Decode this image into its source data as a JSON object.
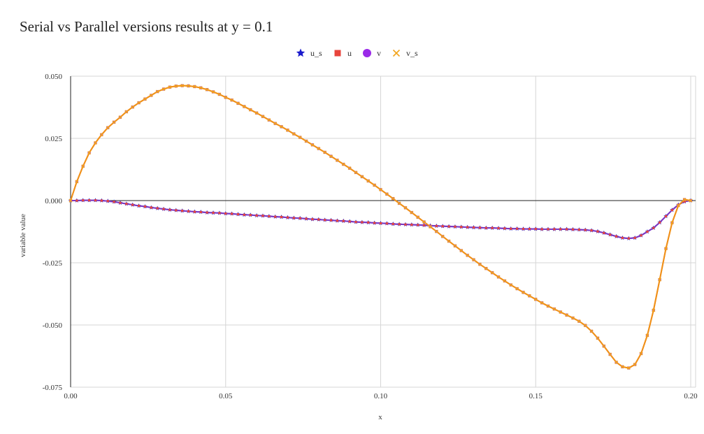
{
  "chart_data": {
    "type": "line",
    "title": "Serial vs Parallel versions results at y = 0.1",
    "xlabel": "x",
    "ylabel": "variable value",
    "xlim": [
      0,
      0.2
    ],
    "ylim": [
      -0.075,
      0.05
    ],
    "xticks": [
      "0.00",
      "0.05",
      "0.10",
      "0.15",
      "0.20"
    ],
    "yticks": [
      "0.050",
      "0.025",
      "0.000",
      "-0.025",
      "-0.050",
      "-0.075"
    ],
    "grid": true,
    "legend_position": "top",
    "x": [
      0,
      0.002,
      0.004,
      0.006,
      0.008,
      0.01,
      0.012,
      0.014,
      0.016,
      0.018,
      0.02,
      0.022,
      0.024,
      0.026,
      0.028,
      0.03,
      0.032,
      0.034,
      0.036,
      0.038,
      0.04,
      0.042,
      0.044,
      0.046,
      0.048,
      0.05,
      0.052,
      0.054,
      0.056,
      0.058,
      0.06,
      0.062,
      0.064,
      0.066,
      0.068,
      0.07,
      0.072,
      0.074,
      0.076,
      0.078,
      0.08,
      0.082,
      0.084,
      0.086,
      0.088,
      0.09,
      0.092,
      0.094,
      0.096,
      0.098,
      0.1,
      0.102,
      0.104,
      0.106,
      0.108,
      0.11,
      0.112,
      0.114,
      0.116,
      0.118,
      0.12,
      0.122,
      0.124,
      0.126,
      0.128,
      0.13,
      0.132,
      0.134,
      0.136,
      0.138,
      0.14,
      0.142,
      0.144,
      0.146,
      0.148,
      0.15,
      0.152,
      0.154,
      0.156,
      0.158,
      0.16,
      0.162,
      0.164,
      0.166,
      0.168,
      0.17,
      0.172,
      0.174,
      0.176,
      0.178,
      0.18,
      0.182,
      0.184,
      0.186,
      0.188,
      0.19,
      0.192,
      0.194,
      0.196,
      0.198,
      0.2
    ],
    "series": [
      {
        "name": "u_s",
        "color": "#1a1acc",
        "marker": "star",
        "values": [
          0,
          0,
          0.0001,
          0.0001,
          0.0001,
          0,
          -0.0002,
          -0.0005,
          -0.0009,
          -0.0013,
          -0.0017,
          -0.0021,
          -0.0024,
          -0.0028,
          -0.0031,
          -0.0034,
          -0.0037,
          -0.0039,
          -0.0041,
          -0.0043,
          -0.0045,
          -0.0046,
          -0.0048,
          -0.0049,
          -0.005,
          -0.0052,
          -0.0053,
          -0.0055,
          -0.0057,
          -0.0058,
          -0.006,
          -0.0061,
          -0.0063,
          -0.0065,
          -0.0066,
          -0.0068,
          -0.007,
          -0.0071,
          -0.0073,
          -0.0075,
          -0.0076,
          -0.0078,
          -0.0079,
          -0.0081,
          -0.0082,
          -0.0084,
          -0.0086,
          -0.0087,
          -0.0088,
          -0.009,
          -0.0091,
          -0.0092,
          -0.0094,
          -0.0095,
          -0.0096,
          -0.0097,
          -0.0098,
          -0.0099,
          -0.0101,
          -0.0102,
          -0.0103,
          -0.0104,
          -0.0105,
          -0.0106,
          -0.0107,
          -0.0108,
          -0.0109,
          -0.011,
          -0.011,
          -0.0111,
          -0.0112,
          -0.0113,
          -0.0113,
          -0.0114,
          -0.0114,
          -0.0114,
          -0.0115,
          -0.0115,
          -0.0115,
          -0.0115,
          -0.0115,
          -0.0116,
          -0.0117,
          -0.0118,
          -0.012,
          -0.0124,
          -0.013,
          -0.0137,
          -0.0144,
          -0.015,
          -0.0152,
          -0.015,
          -0.014,
          -0.0125,
          -0.011,
          -0.0088,
          -0.0063,
          -0.0038,
          -0.0017,
          -0.0004,
          0
        ]
      },
      {
        "name": "u",
        "color": "#e8453c",
        "marker": "square",
        "values": [
          0,
          0,
          0.0001,
          0.0001,
          0.0001,
          0,
          -0.0002,
          -0.0005,
          -0.0009,
          -0.0013,
          -0.0017,
          -0.0021,
          -0.0024,
          -0.0028,
          -0.0031,
          -0.0034,
          -0.0037,
          -0.0039,
          -0.0041,
          -0.0043,
          -0.0045,
          -0.0046,
          -0.0048,
          -0.0049,
          -0.005,
          -0.0052,
          -0.0053,
          -0.0055,
          -0.0057,
          -0.0058,
          -0.006,
          -0.0061,
          -0.0063,
          -0.0065,
          -0.0066,
          -0.0068,
          -0.007,
          -0.0071,
          -0.0073,
          -0.0075,
          -0.0076,
          -0.0078,
          -0.0079,
          -0.0081,
          -0.0082,
          -0.0084,
          -0.0086,
          -0.0087,
          -0.0088,
          -0.009,
          -0.0091,
          -0.0092,
          -0.0094,
          -0.0095,
          -0.0096,
          -0.0097,
          -0.0098,
          -0.0099,
          -0.0101,
          -0.0102,
          -0.0103,
          -0.0104,
          -0.0105,
          -0.0106,
          -0.0107,
          -0.0108,
          -0.0109,
          -0.011,
          -0.011,
          -0.0111,
          -0.0112,
          -0.0113,
          -0.0113,
          -0.0114,
          -0.0114,
          -0.0114,
          -0.0115,
          -0.0115,
          -0.0115,
          -0.0115,
          -0.0115,
          -0.0116,
          -0.0117,
          -0.0118,
          -0.012,
          -0.0124,
          -0.013,
          -0.0137,
          -0.0144,
          -0.015,
          -0.0152,
          -0.015,
          -0.014,
          -0.0125,
          -0.011,
          -0.0088,
          -0.0063,
          -0.0038,
          -0.0017,
          -0.0004,
          0
        ]
      },
      {
        "name": "v",
        "color": "#9a2ae8",
        "marker": "circle",
        "values": [
          0,
          0.0076,
          0.0138,
          0.0192,
          0.0232,
          0.0265,
          0.0293,
          0.0315,
          0.0335,
          0.0357,
          0.0376,
          0.0393,
          0.0408,
          0.0423,
          0.0438,
          0.0448,
          0.0456,
          0.046,
          0.0462,
          0.0461,
          0.0458,
          0.0453,
          0.0446,
          0.0437,
          0.0427,
          0.0415,
          0.0404,
          0.0391,
          0.0378,
          0.0365,
          0.0352,
          0.0338,
          0.0324,
          0.031,
          0.0297,
          0.0283,
          0.0268,
          0.0254,
          0.0239,
          0.0224,
          0.0209,
          0.0194,
          0.0178,
          0.0162,
          0.0146,
          0.013,
          0.0113,
          0.0096,
          0.0079,
          0.0062,
          0.0044,
          0.0026,
          0.0008,
          -0.0011,
          -0.0029,
          -0.0048,
          -0.0067,
          -0.0086,
          -0.0105,
          -0.0124,
          -0.0144,
          -0.0163,
          -0.0182,
          -0.0201,
          -0.022,
          -0.0238,
          -0.0256,
          -0.0273,
          -0.029,
          -0.0307,
          -0.0323,
          -0.0339,
          -0.0354,
          -0.0369,
          -0.0383,
          -0.0397,
          -0.0411,
          -0.0424,
          -0.0436,
          -0.0448,
          -0.046,
          -0.0472,
          -0.0485,
          -0.0502,
          -0.0525,
          -0.0553,
          -0.0585,
          -0.0618,
          -0.065,
          -0.0668,
          -0.0673,
          -0.0659,
          -0.0615,
          -0.0542,
          -0.0441,
          -0.0318,
          -0.0193,
          -0.0089,
          -0.002,
          0.0004,
          0
        ]
      },
      {
        "name": "v_s",
        "color": "#f2a41c",
        "marker": "cross",
        "values": [
          0,
          0.0076,
          0.0138,
          0.0192,
          0.0232,
          0.0265,
          0.0293,
          0.0315,
          0.0335,
          0.0357,
          0.0376,
          0.0393,
          0.0408,
          0.0423,
          0.0438,
          0.0448,
          0.0456,
          0.046,
          0.0462,
          0.0461,
          0.0458,
          0.0453,
          0.0446,
          0.0437,
          0.0427,
          0.0415,
          0.0404,
          0.0391,
          0.0378,
          0.0365,
          0.0352,
          0.0338,
          0.0324,
          0.031,
          0.0297,
          0.0283,
          0.0268,
          0.0254,
          0.0239,
          0.0224,
          0.0209,
          0.0194,
          0.0178,
          0.0162,
          0.0146,
          0.013,
          0.0113,
          0.0096,
          0.0079,
          0.0062,
          0.0044,
          0.0026,
          0.0008,
          -0.0011,
          -0.0029,
          -0.0048,
          -0.0067,
          -0.0086,
          -0.0105,
          -0.0124,
          -0.0144,
          -0.0163,
          -0.0182,
          -0.0201,
          -0.022,
          -0.0238,
          -0.0256,
          -0.0273,
          -0.029,
          -0.0307,
          -0.0323,
          -0.0339,
          -0.0354,
          -0.0369,
          -0.0383,
          -0.0397,
          -0.0411,
          -0.0424,
          -0.0436,
          -0.0448,
          -0.046,
          -0.0472,
          -0.0485,
          -0.0502,
          -0.0525,
          -0.0553,
          -0.0585,
          -0.0618,
          -0.065,
          -0.0668,
          -0.0673,
          -0.0659,
          -0.0615,
          -0.0542,
          -0.0441,
          -0.0318,
          -0.0193,
          -0.0089,
          -0.002,
          0.0004,
          0
        ]
      }
    ]
  }
}
